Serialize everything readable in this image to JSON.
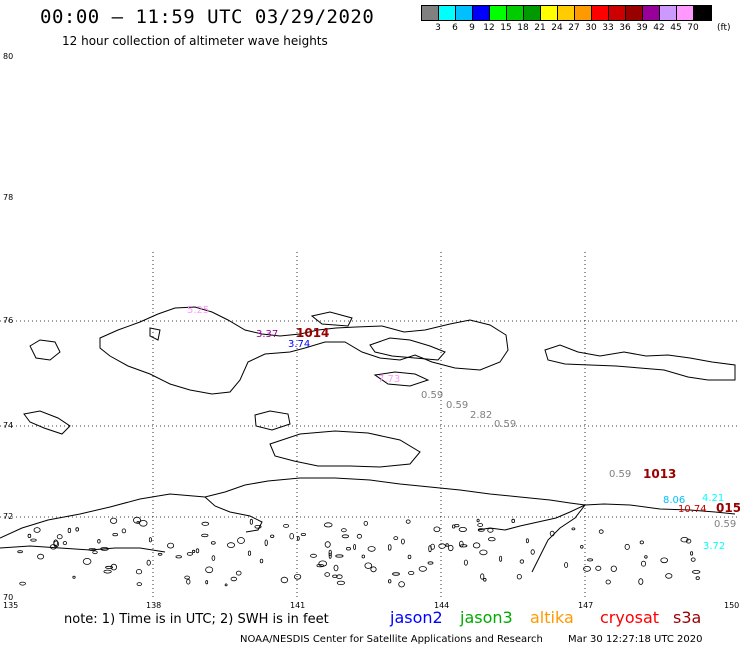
{
  "header": {
    "title": "00:00 – 11:59 UTC 03/29/2020",
    "subtitle": "12 hour collection of altimeter wave heights"
  },
  "legend": {
    "unit": "(ft)",
    "bins": [
      {
        "color": "#808080",
        "label": "3"
      },
      {
        "color": "#00ffff",
        "label": "6"
      },
      {
        "color": "#00c0ff",
        "label": "9"
      },
      {
        "color": "#0000ff",
        "label": "12"
      },
      {
        "color": "#00ff00",
        "label": "15"
      },
      {
        "color": "#00cc00",
        "label": "18"
      },
      {
        "color": "#009900",
        "label": "21"
      },
      {
        "color": "#ffff00",
        "label": "24"
      },
      {
        "color": "#ffcc00",
        "label": "27"
      },
      {
        "color": "#ff9900",
        "label": "30"
      },
      {
        "color": "#ff0000",
        "label": "33"
      },
      {
        "color": "#cc0000",
        "label": "36"
      },
      {
        "color": "#990000",
        "label": "39"
      },
      {
        "color": "#990099",
        "label": "42"
      },
      {
        "color": "#cc99ff",
        "label": "45"
      },
      {
        "color": "#ff99ff",
        "label": "70"
      },
      {
        "color": "#000000",
        "label": ""
      }
    ]
  },
  "axes": {
    "lat_labels": [
      "80",
      "78",
      "76",
      "74",
      "72",
      "70"
    ],
    "lon_labels": [
      "135",
      "138",
      "141",
      "144",
      "147",
      "150"
    ]
  },
  "observations": [
    {
      "text": "5.25",
      "color": "#ff99ff"
    },
    {
      "text": "3.37",
      "color": "#990099"
    },
    {
      "text": "1014",
      "color": "#990000"
    },
    {
      "text": "3.74",
      "color": "#0000ff"
    },
    {
      "text": "7.73",
      "color": "#ff99ff"
    },
    {
      "text": "0.59",
      "color": "#808080"
    },
    {
      "text": "0.59",
      "color": "#808080"
    },
    {
      "text": "2.82",
      "color": "#808080"
    },
    {
      "text": "0.59",
      "color": "#808080"
    },
    {
      "text": "0.59",
      "color": "#808080"
    },
    {
      "text": "1013",
      "color": "#990000"
    },
    {
      "text": "8.06",
      "color": "#00c0ff"
    },
    {
      "text": "4.21",
      "color": "#00ffff"
    },
    {
      "text": "10.74",
      "color": "#cc0000"
    },
    {
      "text": "015",
      "color": "#990000"
    },
    {
      "text": "0.59",
      "color": "#808080"
    },
    {
      "text": "3.72",
      "color": "#00ffff"
    }
  ],
  "footer": {
    "note": "note:  1) Time is in UTC; 2) SWH is in feet",
    "satellites": [
      {
        "name": "jason2",
        "color": "#0000ff"
      },
      {
        "name": "jason3",
        "color": "#00aa00"
      },
      {
        "name": "altika",
        "color": "#ff9900"
      },
      {
        "name": "cryosat",
        "color": "#ff0000"
      },
      {
        "name": "s3a",
        "color": "#990000"
      }
    ],
    "credit": "NOAA/NESDIS Center for Satellite Applications and Research",
    "timestamp": "Mar 30 12:27:18 UTC 2020"
  }
}
